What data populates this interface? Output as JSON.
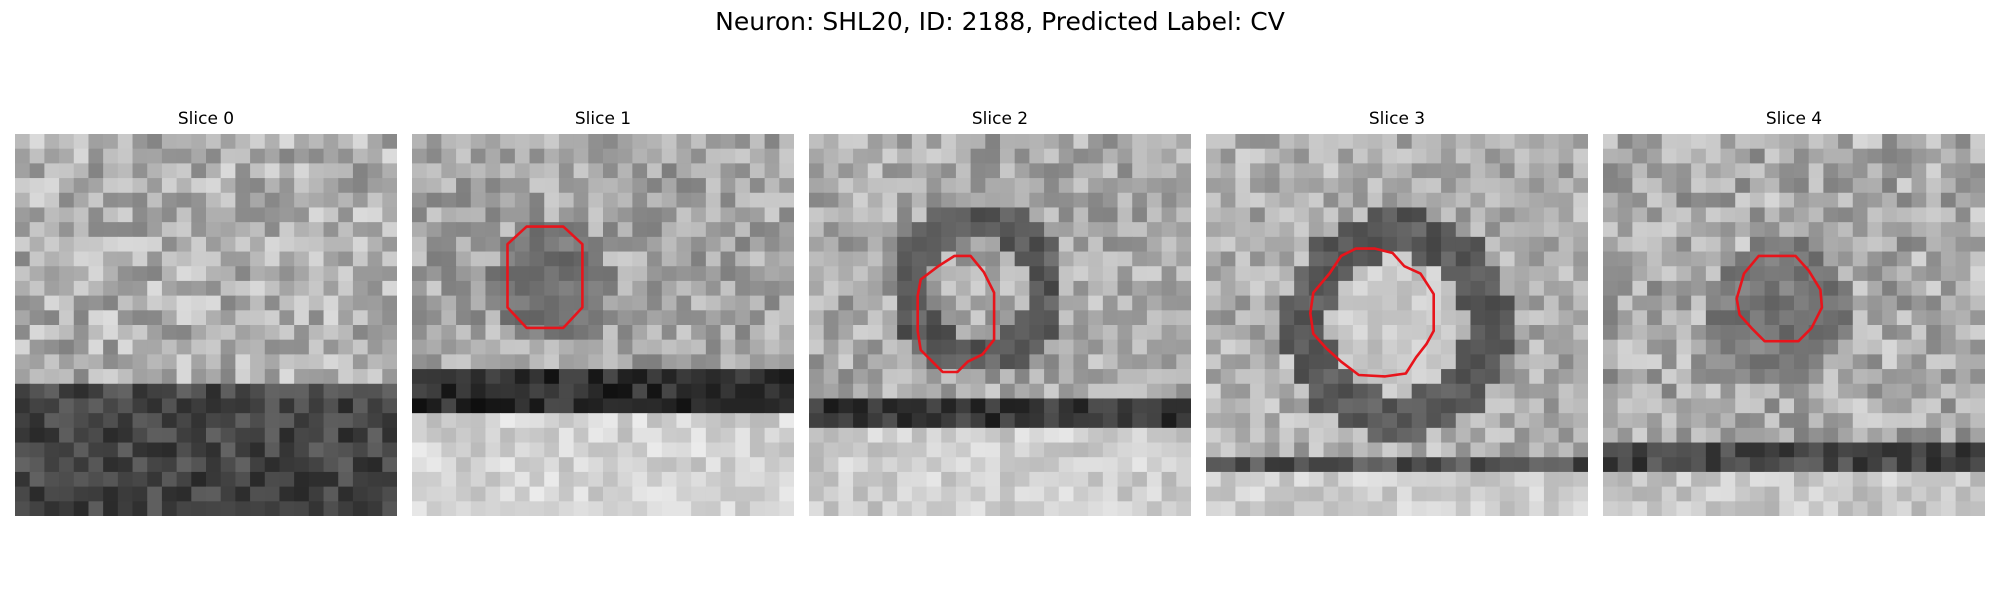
{
  "figure": {
    "title": "Neuron: SHL20, ID: 2188, Predicted Label: CV"
  },
  "panels": [
    {
      "title": "Slice 0",
      "image": "grayscale-em-patch",
      "contour": null,
      "dark_band": "bottom"
    },
    {
      "title": "Slice 1",
      "image": "grayscale-em-patch",
      "contour": "red-octagon",
      "dark_band": "lower-middle"
    },
    {
      "title": "Slice 2",
      "image": "grayscale-em-patch",
      "contour": "red-octagon",
      "dark_band": "lower-middle"
    },
    {
      "title": "Slice 3",
      "image": "grayscale-em-patch",
      "contour": "red-octagon",
      "dark_band": "lower"
    },
    {
      "title": "Slice 4",
      "image": "grayscale-em-patch",
      "contour": "red-octagon",
      "dark_band": "lower"
    }
  ],
  "colors": {
    "contour": "#e8141b",
    "background": "#ffffff"
  }
}
